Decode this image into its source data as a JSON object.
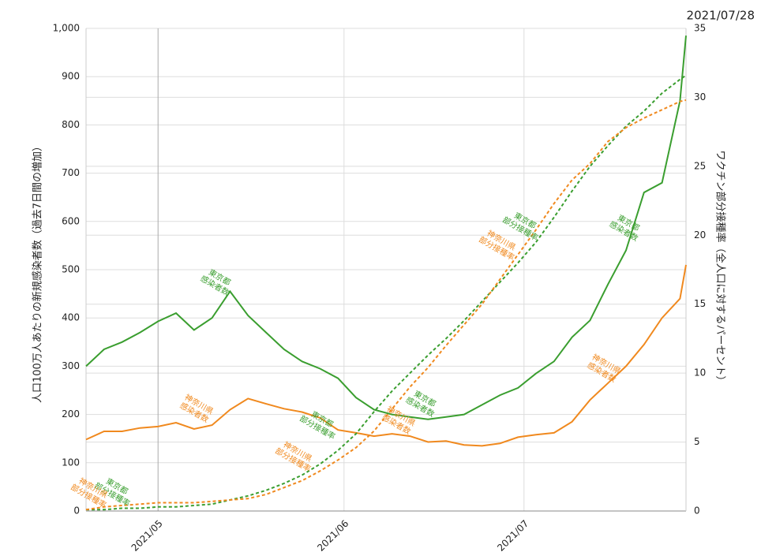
{
  "chart_data": {
    "type": "line",
    "title": "2021/07/28",
    "y_label": "人口100万人あたりの新規感染者数（過去7日間の増加）",
    "y2_label": "ワクチン部分接種率（全人口に対するパーセント）",
    "x": [
      0,
      3,
      6,
      9,
      12,
      15,
      18,
      21,
      24,
      27,
      30,
      33,
      36,
      39,
      42,
      45,
      48,
      51,
      54,
      57,
      60,
      63,
      66,
      69,
      72,
      75,
      78,
      81,
      84,
      87,
      90,
      93,
      96,
      99,
      100
    ],
    "xlim": [
      0,
      100
    ],
    "xticks": [
      {
        "value": 12,
        "label": "2021/05"
      },
      {
        "value": 43,
        "label": "2021/06"
      },
      {
        "value": 73,
        "label": "2021/07"
      }
    ],
    "ylim": [
      0,
      1000
    ],
    "yticks": [
      0,
      100,
      200,
      300,
      400,
      500,
      600,
      700,
      800,
      900,
      {
        "value": 1000,
        "label": "1,000"
      }
    ],
    "y2lim": [
      0,
      35
    ],
    "y2ticks": [
      0,
      5,
      10,
      15,
      20,
      25,
      30,
      35
    ],
    "grid": true,
    "series": [
      {
        "color": "#3a9e2f",
        "dashed": false,
        "values": [
          300,
          335,
          350,
          370,
          393,
          410,
          375,
          400,
          455,
          405,
          370,
          335,
          310,
          295,
          275,
          235,
          210,
          200,
          195,
          190,
          195,
          200,
          220,
          240,
          255,
          285,
          310,
          360,
          395,
          470,
          540,
          660,
          680,
          850,
          985
        ]
      },
      {
        "color": "#f0891e",
        "dashed": false,
        "values": [
          148,
          165,
          165,
          172,
          175,
          183,
          170,
          178,
          210,
          233,
          222,
          212,
          205,
          193,
          168,
          162,
          155,
          160,
          155,
          143,
          145,
          137,
          135,
          140,
          153,
          158,
          162,
          185,
          230,
          265,
          300,
          345,
          400,
          440,
          510
        ]
      },
      {
        "color": "#3a9e2f",
        "dashed": true,
        "axis": "y2",
        "values": [
          0.1,
          0.1,
          0.2,
          0.2,
          0.3,
          0.3,
          0.4,
          0.5,
          0.8,
          1.1,
          1.5,
          2.0,
          2.6,
          3.4,
          4.4,
          5.6,
          7.2,
          8.7,
          10.0,
          11.3,
          12.5,
          13.8,
          15.2,
          16.6,
          18.0,
          19.5,
          21.3,
          23.2,
          25.0,
          26.5,
          27.9,
          29.0,
          30.3,
          31.3,
          31.6
        ]
      },
      {
        "color": "#f0891e",
        "dashed": true,
        "axis": "y2",
        "values": [
          0.1,
          0.3,
          0.4,
          0.5,
          0.6,
          0.6,
          0.6,
          0.7,
          0.8,
          0.9,
          1.2,
          1.7,
          2.2,
          2.9,
          3.7,
          4.6,
          5.8,
          7.4,
          9.0,
          10.4,
          12.0,
          13.5,
          15.0,
          16.8,
          18.6,
          20.4,
          22.3,
          24.0,
          25.2,
          26.8,
          27.8,
          28.5,
          29.1,
          29.7,
          29.8
        ]
      }
    ],
    "annotations": [
      {
        "lines": [
          "東京都",
          "感染者数"
        ],
        "color": "#3a9e2f"
      },
      {
        "lines": [
          "神奈川県",
          "感染者数"
        ],
        "color": "#f0891e"
      },
      {
        "lines": [
          "東京都",
          "部分接種率"
        ],
        "color": "#3a9e2f"
      },
      {
        "lines": [
          "神奈川県",
          "部分接種率"
        ],
        "color": "#f0891e"
      },
      {
        "lines": [
          "東京都",
          "感染者数"
        ],
        "color": "#3a9e2f"
      },
      {
        "lines": [
          "神奈川県",
          "感染者数"
        ],
        "color": "#f0891e"
      },
      {
        "lines": [
          "東京都",
          "部分接種率"
        ],
        "color": "#3a9e2f"
      },
      {
        "lines": [
          "神奈川県",
          "部分接種率"
        ],
        "color": "#f0891e"
      },
      {
        "lines": [
          "東京都",
          "感染者数"
        ],
        "color": "#3a9e2f"
      },
      {
        "lines": [
          "神奈川県",
          "感染者数"
        ],
        "color": "#f0891e"
      },
      {
        "lines": [
          "東京都",
          "部分接種率"
        ],
        "color": "#3a9e2f"
      },
      {
        "lines": [
          "神奈川県",
          "部分接種率"
        ],
        "color": "#f0891e"
      }
    ]
  }
}
